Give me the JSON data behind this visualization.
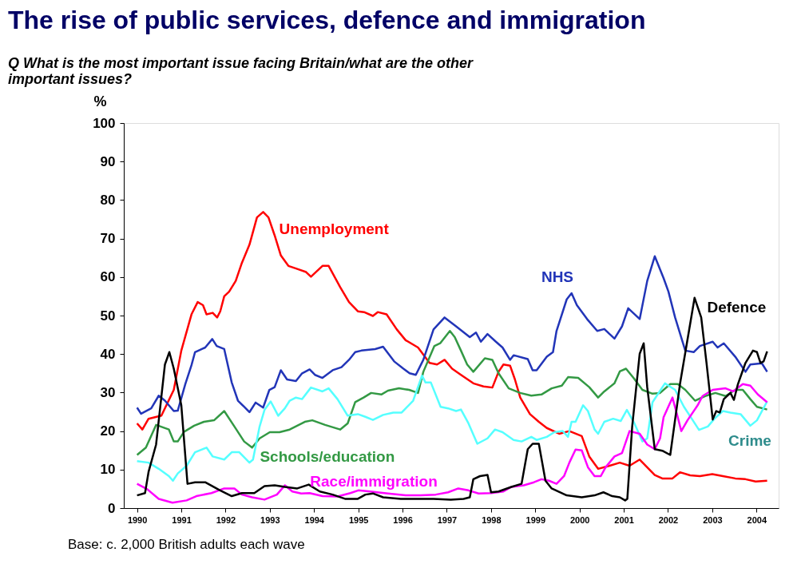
{
  "chart_data": {
    "type": "line",
    "title": "The rise of public services, defence and immigration",
    "subtitle": "Q What is the most important issue facing Britain/what are the other important issues?",
    "ylabel": "%",
    "annotations": [
      "Base: c. 2,000 British adults each wave"
    ],
    "xlim": [
      1989.7,
      2004.5
    ],
    "xticks": [
      1990,
      1991,
      1992,
      1993,
      1994,
      1995,
      1996,
      1997,
      1998,
      1999,
      2000,
      2001,
      2002,
      2003,
      2004
    ],
    "ylim": [
      0,
      100
    ],
    "yticks": [
      0,
      10,
      20,
      30,
      40,
      50,
      60,
      70,
      80,
      90,
      100
    ],
    "grid": false,
    "legend": false,
    "series": [
      {
        "name": "Unemployment",
        "color": "#ff0000",
        "x": [
          1990.0,
          1990.12,
          1990.26,
          1990.55,
          1990.83,
          1991.0,
          1991.23,
          1991.37,
          1991.49,
          1991.57,
          1991.71,
          1991.81,
          1991.88,
          1991.97,
          1992.08,
          1992.23,
          1992.37,
          1992.54,
          1992.71,
          1992.85,
          1992.97,
          1993.11,
          1993.25,
          1993.42,
          1993.62,
          1993.82,
          1993.93,
          1994.19,
          1994.33,
          1994.59,
          1994.79,
          1994.99,
          1995.13,
          1995.33,
          1995.44,
          1995.64,
          1995.87,
          1996.07,
          1996.35,
          1996.61,
          1996.78,
          1996.95,
          1997.12,
          1997.32,
          1997.6,
          1997.83,
          1998.03,
          1998.17,
          1998.28,
          1998.43,
          1998.54,
          1998.66,
          1998.88,
          1999.08,
          1999.26,
          1999.54,
          1999.77,
          2000.05,
          2000.22,
          2000.42,
          2000.68,
          2000.91,
          2001.13,
          2001.36,
          2001.7,
          2001.87,
          2002.1,
          2002.27,
          2002.5,
          2002.72,
          2003.0,
          2003.24,
          2003.52,
          2003.75,
          2003.98,
          2004.24
        ],
        "values": [
          22.0,
          20.4,
          23.2,
          24.0,
          30.7,
          40.9,
          50.3,
          53.5,
          52.7,
          50.3,
          50.7,
          49.5,
          51.1,
          55.0,
          56.2,
          59.0,
          63.7,
          68.4,
          75.5,
          76.9,
          75.5,
          70.8,
          65.6,
          62.9,
          62.1,
          61.3,
          60.1,
          62.9,
          62.9,
          57.4,
          53.5,
          51.1,
          50.9,
          49.9,
          50.9,
          50.3,
          46.4,
          43.6,
          41.7,
          37.7,
          37.3,
          38.5,
          36.2,
          34.6,
          32.4,
          31.6,
          31.3,
          35.4,
          37.3,
          37.0,
          33.4,
          28.7,
          24.4,
          22.4,
          20.8,
          19.3,
          20.0,
          18.7,
          13.4,
          10.2,
          11.0,
          11.8,
          11.0,
          12.6,
          8.6,
          7.7,
          7.7,
          9.3,
          8.5,
          8.3,
          8.8,
          8.3,
          7.7,
          7.5,
          6.9,
          7.1
        ]
      },
      {
        "name": "NHS",
        "color": "#2235b8",
        "x": [
          1990.0,
          1990.09,
          1990.32,
          1990.49,
          1990.63,
          1990.83,
          1990.92,
          1991.09,
          1991.23,
          1991.31,
          1991.54,
          1991.7,
          1991.8,
          1991.97,
          1992.14,
          1992.28,
          1992.42,
          1992.54,
          1992.68,
          1992.85,
          1992.99,
          1993.11,
          1993.25,
          1993.39,
          1993.59,
          1993.73,
          1993.9,
          1994.02,
          1994.19,
          1994.42,
          1994.62,
          1994.79,
          1994.93,
          1995.07,
          1995.38,
          1995.56,
          1995.81,
          1996.02,
          1996.16,
          1996.3,
          1996.47,
          1996.7,
          1996.95,
          1997.21,
          1997.52,
          1997.66,
          1997.77,
          1997.92,
          1998.11,
          1998.26,
          1998.43,
          1998.51,
          1998.83,
          1998.94,
          1999.03,
          1999.26,
          1999.4,
          1999.48,
          1999.71,
          1999.82,
          1999.94,
          2000.17,
          2000.4,
          2000.56,
          2000.79,
          2000.96,
          2001.1,
          2001.36,
          2001.53,
          2001.7,
          2001.9,
          2002.01,
          2002.16,
          2002.39,
          2002.58,
          2002.72,
          2003.01,
          2003.12,
          2003.26,
          2003.52,
          2003.75,
          2003.86,
          2004.12,
          2004.24
        ],
        "values": [
          26.1,
          24.5,
          25.9,
          29.2,
          27.9,
          25.2,
          25.3,
          32.2,
          37.1,
          40.5,
          41.7,
          43.9,
          42.1,
          41.3,
          32.6,
          27.9,
          26.3,
          24.9,
          27.4,
          26.1,
          30.7,
          31.4,
          35.8,
          33.4,
          33.0,
          35.0,
          36.0,
          34.6,
          33.8,
          35.8,
          36.6,
          38.5,
          40.5,
          40.9,
          41.3,
          41.9,
          38.1,
          36.2,
          35.0,
          34.6,
          38.5,
          46.4,
          49.5,
          47.2,
          44.4,
          45.6,
          43.2,
          45.2,
          43.2,
          41.7,
          38.5,
          39.7,
          38.7,
          35.8,
          35.8,
          39.3,
          40.5,
          46.0,
          54.2,
          55.8,
          52.7,
          49.1,
          46.0,
          46.5,
          44.0,
          47.2,
          51.9,
          49.1,
          59.0,
          65.4,
          59.7,
          56.2,
          49.5,
          40.9,
          40.5,
          42.1,
          43.2,
          41.7,
          42.8,
          39.3,
          35.4,
          37.3,
          37.6,
          35.4
        ]
      },
      {
        "name": "Schools/education",
        "color": "#339944",
        "x": [
          1990.0,
          1990.2,
          1990.43,
          1990.72,
          1990.83,
          1990.92,
          1991.06,
          1991.29,
          1991.51,
          1991.74,
          1991.97,
          1992.2,
          1992.42,
          1992.6,
          1992.77,
          1993.0,
          1993.22,
          1993.45,
          1993.79,
          1993.96,
          1994.25,
          1994.59,
          1994.76,
          1994.93,
          1995.12,
          1995.29,
          1995.52,
          1995.67,
          1995.92,
          1996.15,
          1996.35,
          1996.47,
          1996.72,
          1996.85,
          1997.07,
          1997.18,
          1997.32,
          1997.46,
          1997.6,
          1997.86,
          1998.03,
          1998.17,
          1998.4,
          1998.66,
          1998.91,
          1999.14,
          1999.37,
          1999.6,
          1999.74,
          1999.97,
          2000.22,
          2000.42,
          2000.56,
          2000.79,
          2000.91,
          2001.05,
          2001.22,
          2001.42,
          2001.65,
          2001.82,
          2002.05,
          2002.22,
          2002.39,
          2002.61,
          2002.84,
          2003.07,
          2003.3,
          2003.52,
          2003.69,
          2003.86,
          2004.01,
          2004.24
        ],
        "values": [
          13.8,
          15.7,
          21.6,
          20.4,
          17.3,
          17.3,
          19.8,
          21.4,
          22.4,
          22.8,
          25.2,
          21.2,
          17.3,
          15.7,
          18.1,
          19.7,
          19.7,
          20.4,
          22.4,
          22.8,
          21.6,
          20.4,
          22.0,
          27.5,
          28.7,
          29.9,
          29.5,
          30.5,
          31.1,
          30.7,
          29.9,
          35.4,
          42.1,
          42.8,
          46.0,
          44.4,
          40.9,
          37.3,
          35.4,
          38.9,
          38.5,
          35.0,
          31.1,
          29.9,
          29.2,
          29.5,
          31.1,
          31.8,
          34.0,
          33.8,
          31.4,
          28.7,
          30.3,
          32.4,
          35.5,
          36.2,
          33.8,
          30.7,
          29.7,
          29.9,
          32.2,
          32.2,
          30.7,
          27.9,
          29.1,
          29.9,
          29.1,
          30.7,
          30.7,
          28.3,
          26.3,
          25.6
        ]
      },
      {
        "name": "Crime",
        "color": "#55ffff",
        "x": [
          1990.0,
          1990.26,
          1990.49,
          1990.72,
          1990.81,
          1990.92,
          1991.12,
          1991.31,
          1991.57,
          1991.71,
          1991.97,
          1992.14,
          1992.31,
          1992.54,
          1992.62,
          1992.77,
          1992.88,
          1993.02,
          1993.19,
          1993.34,
          1993.45,
          1993.59,
          1993.73,
          1993.93,
          1994.19,
          1994.33,
          1994.53,
          1994.76,
          1994.99,
          1995.16,
          1995.33,
          1995.56,
          1995.79,
          1995.98,
          1996.24,
          1996.44,
          1996.52,
          1996.64,
          1996.86,
          1997.03,
          1997.21,
          1997.32,
          1997.49,
          1997.69,
          1997.92,
          1998.09,
          1998.26,
          1998.51,
          1998.69,
          1998.91,
          1999.03,
          1999.26,
          1999.43,
          1999.62,
          1999.74,
          1999.82,
          1999.91,
          2000.08,
          2000.19,
          2000.34,
          2000.42,
          2000.56,
          2000.76,
          2000.93,
          2001.07,
          2001.24,
          2001.42,
          2001.53,
          2001.65,
          2001.93,
          2002.16,
          2002.36,
          2002.56,
          2002.7,
          2002.9,
          2003.05,
          2003.24,
          2003.41,
          2003.64,
          2003.86,
          2004.01,
          2004.24
        ],
        "values": [
          12.2,
          11.8,
          10.2,
          8.3,
          7.1,
          9.0,
          11.0,
          14.5,
          15.7,
          13.4,
          12.6,
          14.5,
          14.5,
          11.8,
          12.6,
          21.2,
          25.5,
          27.7,
          24.0,
          25.9,
          27.9,
          28.7,
          28.3,
          31.3,
          30.3,
          31.1,
          28.3,
          24.0,
          24.4,
          23.7,
          22.9,
          24.2,
          24.8,
          24.8,
          27.9,
          34.4,
          32.6,
          32.6,
          26.3,
          25.9,
          25.2,
          25.6,
          22.0,
          16.7,
          18.1,
          20.4,
          19.7,
          17.7,
          17.3,
          18.5,
          17.7,
          18.5,
          19.7,
          20.0,
          18.5,
          22.4,
          22.4,
          26.7,
          25.2,
          20.4,
          19.3,
          22.4,
          23.2,
          22.6,
          25.5,
          22.0,
          17.3,
          18.1,
          27.5,
          32.4,
          30.7,
          26.3,
          22.8,
          20.3,
          21.2,
          23.2,
          25.2,
          24.8,
          24.4,
          21.4,
          22.8,
          27.7
        ]
      },
      {
        "name": "Race/immigration",
        "color": "#ff00ff",
        "x": [
          1990.0,
          1990.23,
          1990.49,
          1990.8,
          1991.12,
          1991.34,
          1991.68,
          1991.97,
          1992.2,
          1992.37,
          1992.6,
          1992.88,
          1993.16,
          1993.34,
          1993.51,
          1993.71,
          1993.9,
          1994.19,
          1994.53,
          1994.82,
          1995.0,
          1995.27,
          1995.67,
          1996.07,
          1996.41,
          1996.75,
          1997.03,
          1997.26,
          1997.49,
          1997.72,
          1998.0,
          1998.28,
          1998.46,
          1998.74,
          1998.97,
          1999.14,
          1999.31,
          1999.48,
          1999.65,
          1999.77,
          1999.91,
          2000.05,
          2000.19,
          2000.34,
          2000.48,
          2000.59,
          2000.79,
          2000.96,
          2001.13,
          2001.36,
          2001.53,
          2001.7,
          2001.82,
          2001.9,
          2002.1,
          2002.22,
          2002.3,
          2002.44,
          2002.67,
          2002.78,
          2003.01,
          2003.3,
          2003.47,
          2003.69,
          2003.86,
          2004.03,
          2004.24
        ],
        "values": [
          6.3,
          4.9,
          2.4,
          1.4,
          2.0,
          3.1,
          3.9,
          5.1,
          5.1,
          3.5,
          2.8,
          2.2,
          3.5,
          5.9,
          4.3,
          3.8,
          3.9,
          3.1,
          3.0,
          3.9,
          4.6,
          4.3,
          3.8,
          3.3,
          3.3,
          3.5,
          4.1,
          5.1,
          4.6,
          3.8,
          3.9,
          4.3,
          5.5,
          5.9,
          6.7,
          7.5,
          7.1,
          6.3,
          8.3,
          11.8,
          15.2,
          15.0,
          10.6,
          8.3,
          8.3,
          10.6,
          13.4,
          14.3,
          20.0,
          19.3,
          16.5,
          15.3,
          18.1,
          23.6,
          28.7,
          23.6,
          20.0,
          22.8,
          26.7,
          29.1,
          30.7,
          31.1,
          30.3,
          32.2,
          31.8,
          29.5,
          27.5
        ]
      },
      {
        "name": "Defence",
        "color": "#000000",
        "x": [
          1990.0,
          1990.18,
          1990.26,
          1990.43,
          1990.63,
          1990.73,
          1990.83,
          1991.0,
          1991.14,
          1991.31,
          1991.54,
          1991.86,
          1992.14,
          1992.37,
          1992.65,
          1992.88,
          1993.11,
          1993.34,
          1993.62,
          1993.88,
          1994.13,
          1994.42,
          1994.7,
          1994.99,
          1995.16,
          1995.33,
          1995.56,
          1995.96,
          1996.3,
          1996.7,
          1997.09,
          1997.38,
          1997.52,
          1997.6,
          1997.75,
          1997.92,
          1998.0,
          1998.17,
          1998.46,
          1998.69,
          1998.83,
          1998.94,
          1999.08,
          1999.23,
          1999.37,
          1999.71,
          2000.05,
          2000.34,
          2000.54,
          2000.74,
          2000.91,
          2001.03,
          2001.08,
          2001.19,
          2001.36,
          2001.45,
          2001.53,
          2001.7,
          2001.87,
          2002.05,
          2002.27,
          2002.6,
          2002.75,
          2002.87,
          2003.01,
          2003.09,
          2003.17,
          2003.26,
          2003.41,
          2003.49,
          2003.58,
          2003.75,
          2003.92,
          2004.01,
          2004.09,
          2004.16,
          2004.24
        ],
        "values": [
          3.3,
          3.9,
          9.4,
          16.5,
          37.3,
          40.5,
          36.2,
          26.7,
          6.3,
          6.7,
          6.7,
          4.7,
          3.1,
          3.9,
          3.9,
          5.7,
          5.9,
          5.5,
          5.1,
          6.1,
          4.3,
          3.5,
          2.4,
          2.4,
          3.5,
          3.8,
          2.8,
          2.4,
          2.4,
          2.4,
          2.2,
          2.4,
          2.8,
          7.5,
          8.3,
          8.6,
          4.1,
          4.3,
          5.5,
          6.3,
          15.3,
          16.7,
          16.7,
          7.1,
          5.1,
          3.3,
          2.8,
          3.3,
          4.1,
          3.1,
          2.8,
          2.0,
          2.4,
          21.2,
          40.1,
          42.8,
          31.4,
          15.3,
          14.9,
          13.8,
          32.2,
          54.6,
          49.5,
          37.7,
          23.0,
          25.2,
          24.8,
          28.3,
          29.9,
          28.1,
          32.2,
          37.7,
          40.9,
          40.5,
          37.7,
          38.1,
          40.7
        ]
      }
    ]
  }
}
